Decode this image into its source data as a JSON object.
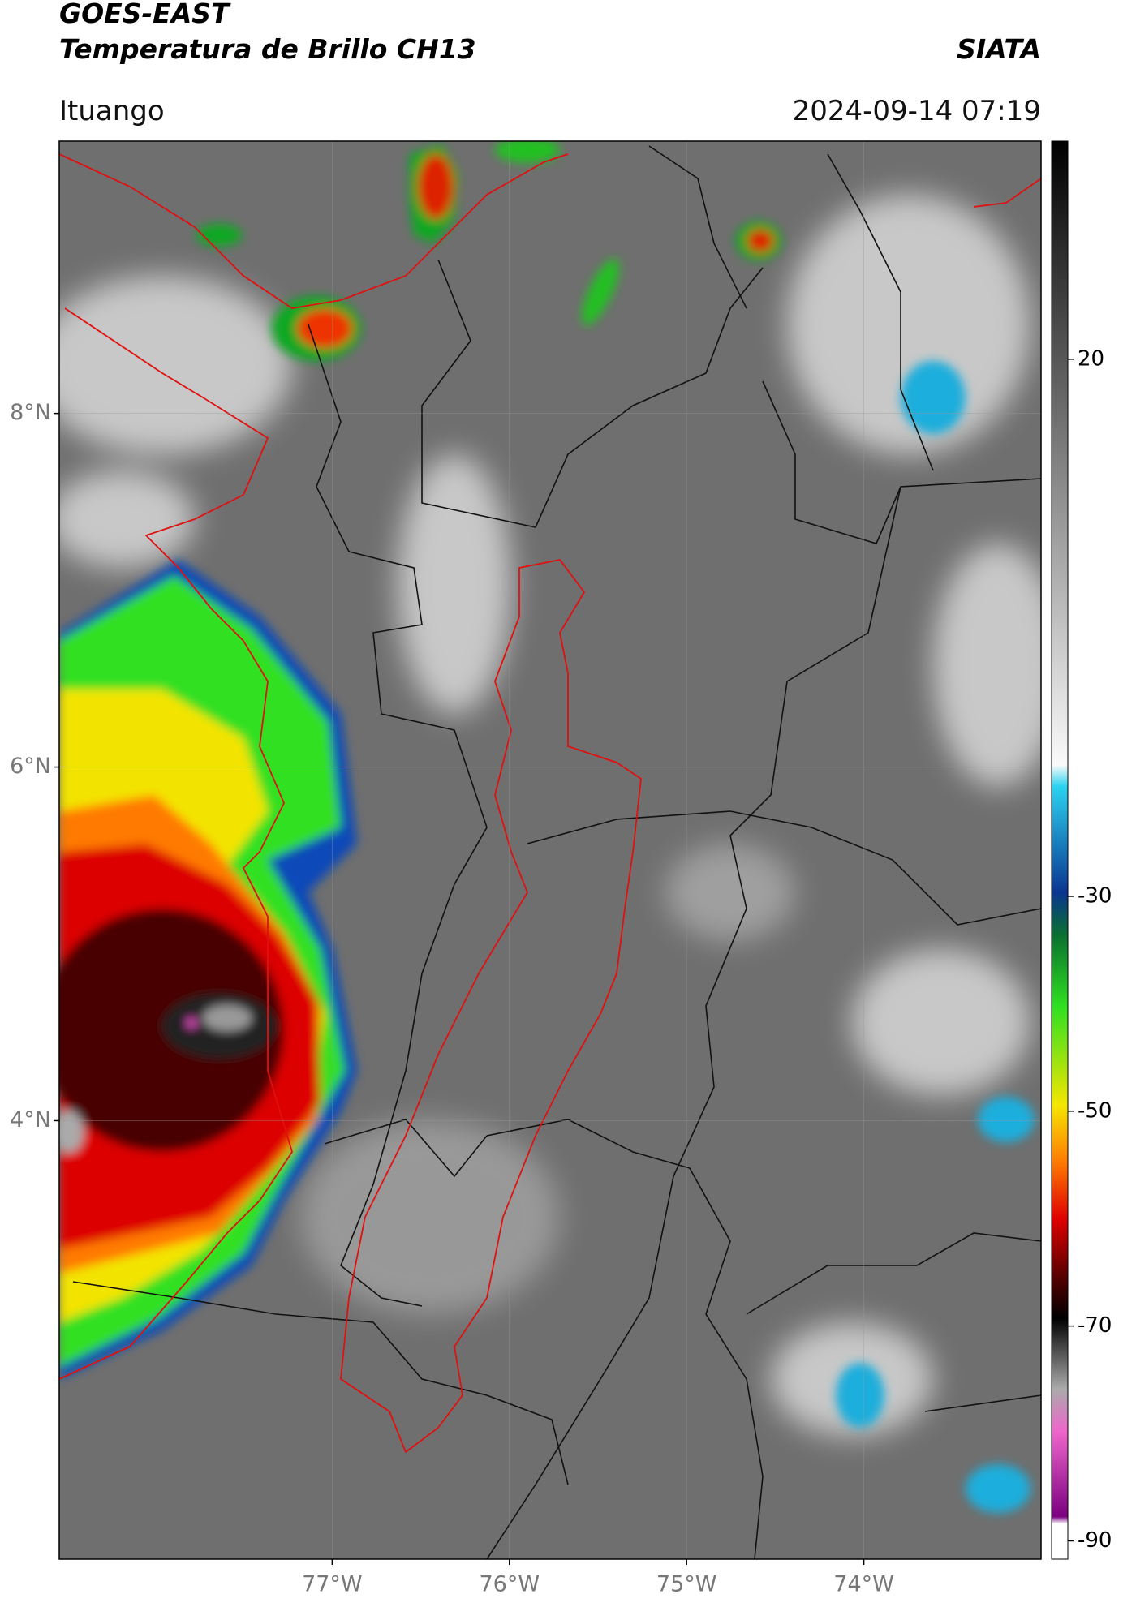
{
  "header": {
    "title_lines": [
      "GOES-EAST",
      "Temperatura de Brillo CH13"
    ],
    "source": "SIATA",
    "location": "Ituango",
    "timestamp": "2024-09-14 07:19"
  },
  "map": {
    "lat_lim": [
      1.52,
      9.54
    ],
    "lon_lim": [
      -78.54,
      -73.0
    ],
    "lat_ticks": [
      {
        "value": 8,
        "label": "8°N"
      },
      {
        "value": 6,
        "label": "6°N"
      },
      {
        "value": 4,
        "label": "4°N"
      }
    ],
    "lon_ticks": [
      {
        "value": -77,
        "label": "77°W"
      },
      {
        "value": -76,
        "label": "76°W"
      },
      {
        "value": -75,
        "label": "75°W"
      },
      {
        "value": -74,
        "label": "74°W"
      }
    ],
    "grid": true
  },
  "colorbar": {
    "lim": [
      -91.7,
      40.3
    ],
    "ticks": [
      20,
      -30,
      -50,
      -70,
      -90
    ]
  }
}
